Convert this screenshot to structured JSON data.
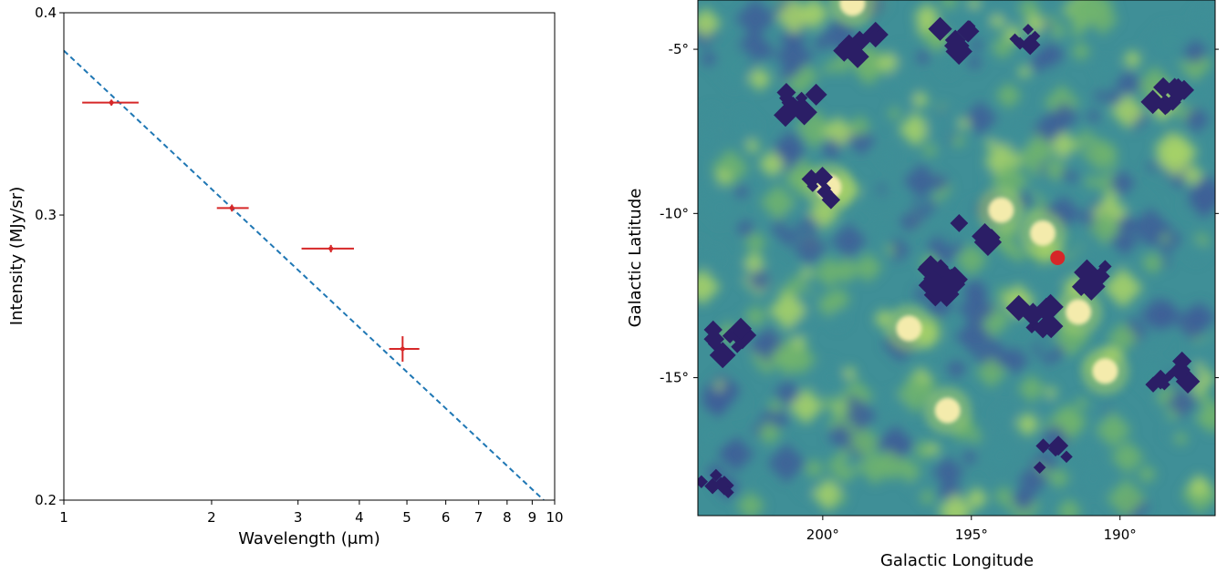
{
  "chart_data": [
    {
      "type": "scatter",
      "title": "",
      "xlabel": "Wavelength (μm)",
      "ylabel": "Intensity (MJy/sr)",
      "xscale": "log",
      "yscale": "log",
      "xlim": [
        1,
        10
      ],
      "ylim": [
        0.2,
        0.4
      ],
      "grid": false,
      "legend": "none",
      "xticks": [
        {
          "value": 1,
          "label": "1"
        },
        {
          "value": 2,
          "label": "2"
        },
        {
          "value": 3,
          "label": "3"
        },
        {
          "value": 4,
          "label": "4"
        },
        {
          "value": 5,
          "label": "5"
        },
        {
          "value": 6,
          "label": "6"
        },
        {
          "value": 7,
          "label": "7"
        },
        {
          "value": 8,
          "label": "8"
        },
        {
          "value": 9,
          "label": "9"
        },
        {
          "value": 10,
          "label": "10"
        }
      ],
      "yticks": [
        {
          "value": 0.2,
          "label": "0.2"
        },
        {
          "value": 0.3,
          "label": "0.3"
        },
        {
          "value": 0.4,
          "label": "0.4"
        }
      ],
      "series": [
        {
          "kind": "errorbar",
          "color": "#d62728",
          "points": [
            {
              "x": 1.25,
              "y": 0.352,
              "xerr": [
                1.09,
                1.42
              ],
              "yerr": 0.0015
            },
            {
              "x": 2.2,
              "y": 0.303,
              "xerr": [
                2.05,
                2.38
              ],
              "yerr": 0.0015
            },
            {
              "x": 3.5,
              "y": 0.286,
              "xerr": [
                3.05,
                3.9
              ],
              "yerr": 0.0015
            },
            {
              "x": 4.9,
              "y": 0.248,
              "xerr": [
                4.6,
                5.3
              ],
              "yerr": 0.0045
            }
          ]
        },
        {
          "kind": "fit-line",
          "style": "dashed",
          "color": "#1f77b4",
          "x": [
            1,
            9.5
          ],
          "y": [
            0.379,
            0.2
          ]
        }
      ]
    },
    {
      "type": "heatmap",
      "title": "",
      "xlabel": "Galactic Longitude",
      "ylabel": "Galactic Latitude",
      "colormap": "viridis-like (navy → teal → green → pale yellow)",
      "colors": [
        "#2b1e66",
        "#3d5f98",
        "#3f8f97",
        "#6fb36e",
        "#a5d068",
        "#f4ebac"
      ],
      "xlim": [
        204.2,
        186.8
      ],
      "ylim": [
        -19.2,
        -3.5
      ],
      "xticks": [
        {
          "value": 200,
          "label": "200°"
        },
        {
          "value": 195,
          "label": "195°"
        },
        {
          "value": 190,
          "label": "190°"
        }
      ],
      "yticks": [
        {
          "value": -5,
          "label": "-5°"
        },
        {
          "value": -10,
          "label": "-10°"
        },
        {
          "value": -15,
          "label": "-15°"
        }
      ],
      "marker": {
        "lon": 192.1,
        "lat": -11.35,
        "color": "#d62728"
      },
      "features": {
        "bright": [
          {
            "lon": 199.8,
            "lat": -9.2
          },
          {
            "lon": 195.8,
            "lat": -16.0
          },
          {
            "lon": 190.5,
            "lat": -14.8
          },
          {
            "lon": 194.0,
            "lat": -9.9
          },
          {
            "lon": 197.1,
            "lat": -13.5
          },
          {
            "lon": 199.0,
            "lat": -3.6
          },
          {
            "lon": 192.6,
            "lat": -10.6
          },
          {
            "lon": 191.4,
            "lat": -13.0
          }
        ],
        "dark": [
          {
            "lon": 193.3,
            "lat": -4.5
          },
          {
            "lon": 200.7,
            "lat": -6.6
          },
          {
            "lon": 200.0,
            "lat": -9.3
          },
          {
            "lon": 196.0,
            "lat": -11.8
          },
          {
            "lon": 195.5,
            "lat": -4.7
          },
          {
            "lon": 196.0,
            "lat": -12.2
          },
          {
            "lon": 188.3,
            "lat": -14.9
          },
          {
            "lon": 203.6,
            "lat": -18.3
          },
          {
            "lon": 203.3,
            "lat": -13.9
          },
          {
            "lon": 198.7,
            "lat": -4.9
          },
          {
            "lon": 194.8,
            "lat": -10.6
          },
          {
            "lon": 188.3,
            "lat": -6.5
          },
          {
            "lon": 192.2,
            "lat": -17.4
          },
          {
            "lon": 190.8,
            "lat": -12.0
          },
          {
            "lon": 192.9,
            "lat": -13.2
          }
        ]
      }
    }
  ]
}
